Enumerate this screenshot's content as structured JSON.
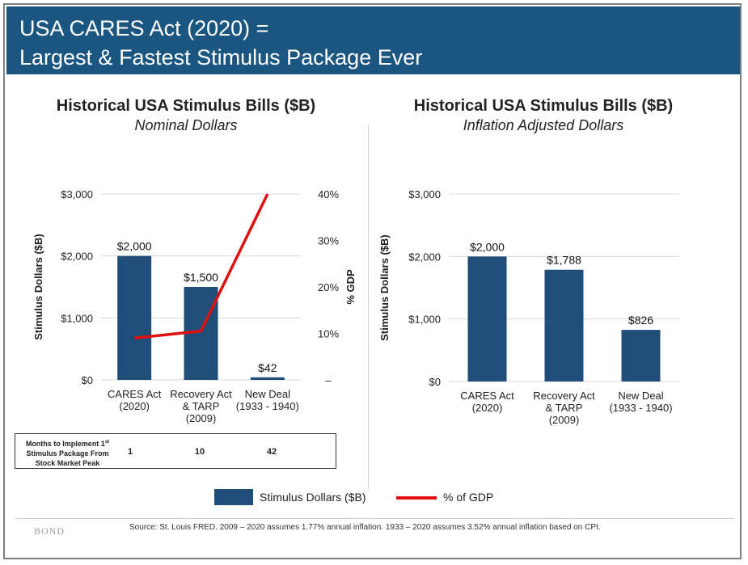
{
  "header": {
    "line1": "USA CARES Act (2020) =",
    "line2": "Largest & Fastest Stimulus Package Ever"
  },
  "colors": {
    "banner": "#1b5680",
    "bar": "#1f4e79",
    "gdp_line": "#e01010"
  },
  "chart_data": [
    {
      "type": "bar",
      "title": "Historical USA Stimulus Bills ($B)",
      "subtitle": "Nominal Dollars",
      "ylabel": "Stimulus Dollars ($B)",
      "ylim": [
        0,
        3000
      ],
      "yticks": [
        0,
        1000,
        2000,
        3000
      ],
      "ytick_labels": [
        "$0",
        "$1,000",
        "$2,000",
        "$3,000"
      ],
      "categories": [
        [
          "CARES Act",
          "(2020)"
        ],
        [
          "Recovery Act",
          "& TARP",
          "(2009)"
        ],
        [
          "New Deal",
          "(1933 - 1940)"
        ]
      ],
      "values": [
        2000,
        1500,
        42
      ],
      "value_labels": [
        "$2,000",
        "$1,500",
        "$42"
      ],
      "y2label": "% GDP",
      "y2lim": [
        0,
        40
      ],
      "y2ticks": [
        0,
        10,
        20,
        30,
        40
      ],
      "y2tick_labels": [
        "–",
        "10%",
        "20%",
        "30%",
        "40%"
      ],
      "line_values": [
        9,
        10.5,
        40
      ],
      "grid": true
    },
    {
      "type": "bar",
      "title": "Historical USA Stimulus Bills ($B)",
      "subtitle": "Inflation Adjusted Dollars",
      "ylabel": "Stimulus Dollars ($B)",
      "ylim": [
        0,
        3000
      ],
      "yticks": [
        0,
        1000,
        2000,
        3000
      ],
      "ytick_labels": [
        "$0",
        "$1,000",
        "$2,000",
        "$3,000"
      ],
      "categories": [
        [
          "CARES Act",
          "(2020)"
        ],
        [
          "Recovery Act",
          "& TARP",
          "(2009)"
        ],
        [
          "New Deal",
          "(1933 - 1940)"
        ]
      ],
      "values": [
        2000,
        1788,
        826
      ],
      "value_labels": [
        "$2,000",
        "$1,788",
        "$826"
      ],
      "grid": true
    }
  ],
  "months_table": {
    "label_l1": "Months to Implement 1",
    "label_sup": "st",
    "label_l2": "Stimulus Package From",
    "label_l3": "Stock Market Peak",
    "values": [
      "1",
      "10",
      "42"
    ]
  },
  "legend": {
    "bar_label": "Stimulus Dollars ($B)",
    "line_label": "% of GDP"
  },
  "footer": {
    "brand": "BOND",
    "source": "Source: St. Louis FRED. 2009 – 2020 assumes 1.77% annual inflation. 1933 – 2020 assumes 3.52% annual inflation based on CPI."
  }
}
